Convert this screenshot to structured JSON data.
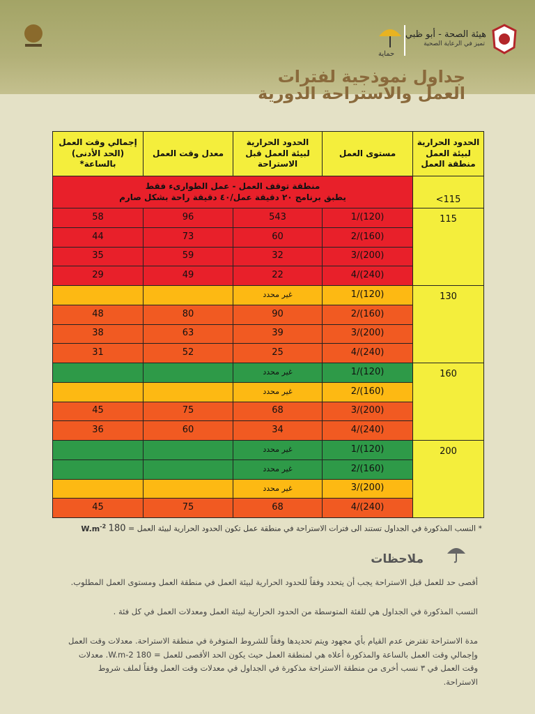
{
  "header": {
    "title_line1": "جداول نموذجية لفترات",
    "title_line2": "العمل والاستراحة الدورية",
    "logo_right": "هيئة الصحة - أبو ظبي",
    "logo_right_sub": "تميز في الرعاية الصحية",
    "logo_center": "حماية"
  },
  "table": {
    "headers": [
      "الحدود الحرارية لبيئة العمل منطقة العمل",
      "مستوى العمل",
      "الحدود الحرارية لبيئة العمل قبل الاستراحة",
      "معدل وقت العمل",
      "إجمالي وقت العمل (الحد الأدنى) بالساعة*"
    ],
    "stop_zone": {
      "threshold": "<115",
      "line1": "منطقة توقف العمل - عمل الطوارىء فقط",
      "line2": "يطبق برنامج ٢٠ دقيقة عمل/٤٠ دقيقة راحة بشكل صارم",
      "color": "#e8202a"
    },
    "threshold_color": "#f4ee3c",
    "groups": [
      {
        "threshold": 115,
        "rows": [
          {
            "level": "1/(120)",
            "heat": 543,
            "avg": 96,
            "total": 58,
            "color": "#e8202a"
          },
          {
            "level": "2/(160)",
            "heat": 60,
            "avg": 73,
            "total": 44,
            "color": "#e8202a"
          },
          {
            "level": "3/(200)",
            "heat": 32,
            "avg": 59,
            "total": 35,
            "color": "#e8202a"
          },
          {
            "level": "4/(240)",
            "heat": 22,
            "avg": 49,
            "total": 29,
            "color": "#e8202a"
          }
        ]
      },
      {
        "threshold": 130,
        "rows": [
          {
            "level": "1/(120)",
            "heat": "غير محدد",
            "color": "#fdb913"
          },
          {
            "level": "2/(160)",
            "heat": 90,
            "avg": 80,
            "total": 48,
            "color": "#f15a22"
          },
          {
            "level": "3/(200)",
            "heat": 39,
            "avg": 63,
            "total": 38,
            "color": "#f15a22"
          },
          {
            "level": "4/(240)",
            "heat": 25,
            "avg": 52,
            "total": 31,
            "color": "#f15a22"
          }
        ]
      },
      {
        "threshold": 160,
        "rows": [
          {
            "level": "1/(120)",
            "heat": "غير محدد",
            "color": "#2e9a48"
          },
          {
            "level": "2/(160)",
            "heat": "غير محدد",
            "color": "#fdb913"
          },
          {
            "level": "3/(200)",
            "heat": 68,
            "avg": 75,
            "total": 45,
            "color": "#f15a22"
          },
          {
            "level": "4/(240)",
            "heat": 34,
            "avg": 60,
            "total": 36,
            "color": "#f15a22"
          }
        ]
      },
      {
        "threshold": 200,
        "rows": [
          {
            "level": "1/(120)",
            "heat": "غير محدد",
            "color": "#2e9a48"
          },
          {
            "level": "2/(160)",
            "heat": "غير محدد",
            "color": "#2e9a48"
          },
          {
            "level": "3/(200)",
            "heat": "غير محدد",
            "color": "#fdb913"
          },
          {
            "level": "4/(240)",
            "heat": 68,
            "avg": 75,
            "total": 45,
            "color": "#f15a22"
          }
        ]
      }
    ]
  },
  "footnote": {
    "text": "* النسب المذكورة في الجداول تستند الى فترات الاستراحة في منطقة عمل تكون الحدود الحرارية لبيئة العمل =",
    "value": 180,
    "unit": "W.m",
    "unit_exp": "-2"
  },
  "notes": {
    "title": "ملاحظات",
    "items": [
      "أقصى حد للعمل قبل الاستراحة يجب أن يتحدد وفقاً للحدود الحرارية لبيئة العمل في منطقة العمل ومستوى العمل المطلوب.",
      "النسب المذكورة في الجداول هي للفئة المتوسطة من الحدود الحرارية لبيئة العمل ومعدلات العمل في كل فئة .",
      "مدة الاستراحة تفترض عدم القيام بأي مجهود ويتم تحديدها وفقاً للشروط المتوفرة في منطقة الاستراحة. معدلات وقت العمل وإجمالي وقت العمل بالساعة والمذكورة أعلاه هي لمنطقة العمل حيث يكون الحد الأقصى للعمل = 180 W.m-2. معدلات وقت العمل في ٣ نسب أخرى من منطقة الاستراحة مذكورة في الجداول في معدلات وقت العمل وفقاً لملف شروط الاستراحة."
    ]
  }
}
